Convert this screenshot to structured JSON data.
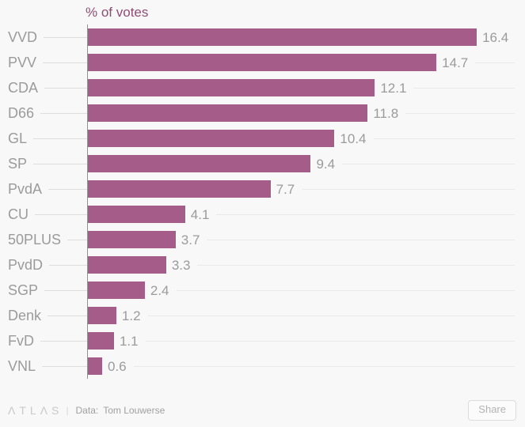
{
  "chart_data": {
    "type": "bar",
    "orientation": "horizontal",
    "title": "% of votes",
    "categories": [
      "VVD",
      "PVV",
      "CDA",
      "D66",
      "GL",
      "SP",
      "PvdA",
      "CU",
      "50PLUS",
      "PvdD",
      "SGP",
      "Denk",
      "FvD",
      "VNL"
    ],
    "values": [
      16.4,
      14.7,
      12.1,
      11.8,
      10.4,
      9.4,
      7.7,
      4.1,
      3.7,
      3.3,
      2.4,
      1.2,
      1.1,
      0.6
    ],
    "value_labels": [
      "16.4",
      "14.7",
      "12.1",
      "11.8",
      "10.4",
      "9.4",
      "7.7",
      "4.1",
      "3.7",
      "3.3",
      "2.4",
      "1.2",
      "1.1",
      "0.6"
    ],
    "xlim": [
      0,
      18
    ],
    "bar_color": "#a55c88",
    "title_color": "#8f4d74",
    "axis_color": "#919191",
    "grid": "row-leader-lines"
  },
  "footer": {
    "logo_text": "ΛTLΛS",
    "divider": "|",
    "source_label": "Data:",
    "source_value": "Tom Louwerse",
    "share_label": "Share"
  }
}
